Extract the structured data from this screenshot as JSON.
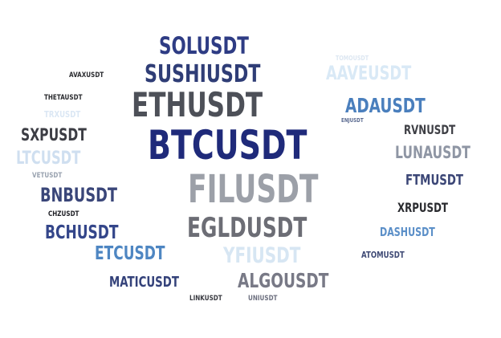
{
  "words": [
    {
      "key": "btcusdt",
      "text": "BTCUSDT",
      "color": "#1f2a7a"
    },
    {
      "key": "filusdt",
      "text": "FILUSDT",
      "color": "#9ca0a8"
    },
    {
      "key": "ethusdt",
      "text": "ETHUSDT",
      "color": "#4d5058"
    },
    {
      "key": "egldusdt",
      "text": "EGLDUSDT",
      "color": "#6c6d75"
    },
    {
      "key": "sushiusdt",
      "text": "SUSHIUSDT",
      "color": "#2f3d76"
    },
    {
      "key": "solusdt",
      "text": "SOLUSDT",
      "color": "#2e3c84"
    },
    {
      "key": "algousdt",
      "text": "ALGOUSDT",
      "color": "#787986"
    },
    {
      "key": "yfiusdt",
      "text": "YFIUSDT",
      "color": "#d7e6f3"
    },
    {
      "key": "aaveusdt",
      "text": "AAVEUSDT",
      "color": "#d9e9f6"
    },
    {
      "key": "adausdt",
      "text": "ADAUSDT",
      "color": "#4a7fbd"
    },
    {
      "key": "lunausdt",
      "text": "LUNAUSDT",
      "color": "#8f96a4"
    },
    {
      "key": "bnbusdt",
      "text": "BNBUSDT",
      "color": "#3a4679"
    },
    {
      "key": "bchusdt",
      "text": "BCHUSDT",
      "color": "#34468a"
    },
    {
      "key": "etcusdt",
      "text": "ETCUSDT",
      "color": "#4e86c2"
    },
    {
      "key": "ltcusdt",
      "text": "LTCUSDT",
      "color": "#cfdff0"
    },
    {
      "key": "sxpusdt",
      "text": "SXPUSDT",
      "color": "#3c3d44"
    },
    {
      "key": "maticusdt",
      "text": "MATICUSDT",
      "color": "#34427a"
    },
    {
      "key": "ftmusdt",
      "text": "FTMUSDT",
      "color": "#3b4676"
    },
    {
      "key": "rvnusdt",
      "text": "RVNUSDT",
      "color": "#3e3f45"
    },
    {
      "key": "xrpusdt",
      "text": "XRPUSDT",
      "color": "#2a2b2f"
    },
    {
      "key": "dashusdt",
      "text": "DASHUSDT",
      "color": "#5b8fc8"
    },
    {
      "key": "trxusdt",
      "text": "TRXUSDT",
      "color": "#dbe7f4"
    },
    {
      "key": "atomusdt",
      "text": "ATOMUSDT",
      "color": "#3f4a75"
    },
    {
      "key": "avaxusdt",
      "text": "AVAXUSDT",
      "color": "#2b2c30"
    },
    {
      "key": "thetausdt",
      "text": "THETAUSDT",
      "color": "#2b2c30"
    },
    {
      "key": "vetusdt",
      "text": "VETUSDT",
      "color": "#9aa3b0"
    },
    {
      "key": "chzusdt",
      "text": "CHZUSDT",
      "color": "#1f2026"
    },
    {
      "key": "linkusdt",
      "text": "LINKUSDT",
      "color": "#3a3b42"
    },
    {
      "key": "uniusdt",
      "text": "UNIUSDT",
      "color": "#6e7180"
    },
    {
      "key": "tomousdt",
      "text": "TOMOUSDT",
      "color": "#dde7f2"
    },
    {
      "key": "enjusdt",
      "text": "ENJUSDT",
      "color": "#5a6a90"
    }
  ]
}
